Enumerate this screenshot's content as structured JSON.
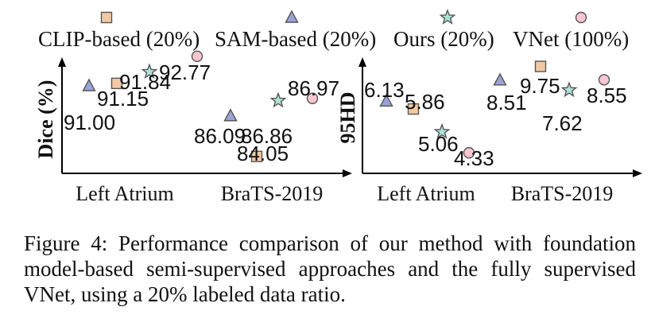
{
  "colors": {
    "CLIP-based": "#f3c9a3",
    "SAM-based": "#9aa3d6",
    "Ours": "#aee3d6",
    "VNet": "#f7c6d2",
    "stroke": "#555555",
    "axis": "#000000"
  },
  "markers": {
    "CLIP-based": "square",
    "SAM-based": "triangle",
    "Ours": "star",
    "VNet": "circle"
  },
  "chart_data": [
    {
      "type": "scatter",
      "ylabel": "Dice (%)",
      "categories": [
        "Left Atrium",
        "BraTS-2019"
      ],
      "series": [
        {
          "name": "CLIP-based (20%)",
          "values": [
            91.15,
            84.05
          ]
        },
        {
          "name": "SAM-based (20%)",
          "values": [
            91.0,
            86.09
          ]
        },
        {
          "name": "Ours (20%)",
          "values": [
            91.84,
            86.86
          ]
        },
        {
          "name": "VNet (100%)",
          "values": [
            92.77,
            86.97
          ]
        }
      ],
      "legend": "top",
      "grid": false
    },
    {
      "type": "scatter",
      "ylabel": "95HD",
      "categories": [
        "Left Atrium",
        "BraTS-2019"
      ],
      "series": [
        {
          "name": "CLIP-based (20%)",
          "values": [
            5.86,
            9.75
          ]
        },
        {
          "name": "SAM-based (20%)",
          "values": [
            6.13,
            8.51
          ]
        },
        {
          "name": "Ours (20%)",
          "values": [
            5.06,
            7.62
          ]
        },
        {
          "name": "VNet (100%)",
          "values": [
            4.33,
            8.55
          ]
        }
      ],
      "legend": "top",
      "grid": false
    }
  ],
  "caption": "Figure 4: Performance comparison of our method with foundation model-based semi-supervised approaches and the fully supervised VNet, using a 20% labeled data ratio."
}
